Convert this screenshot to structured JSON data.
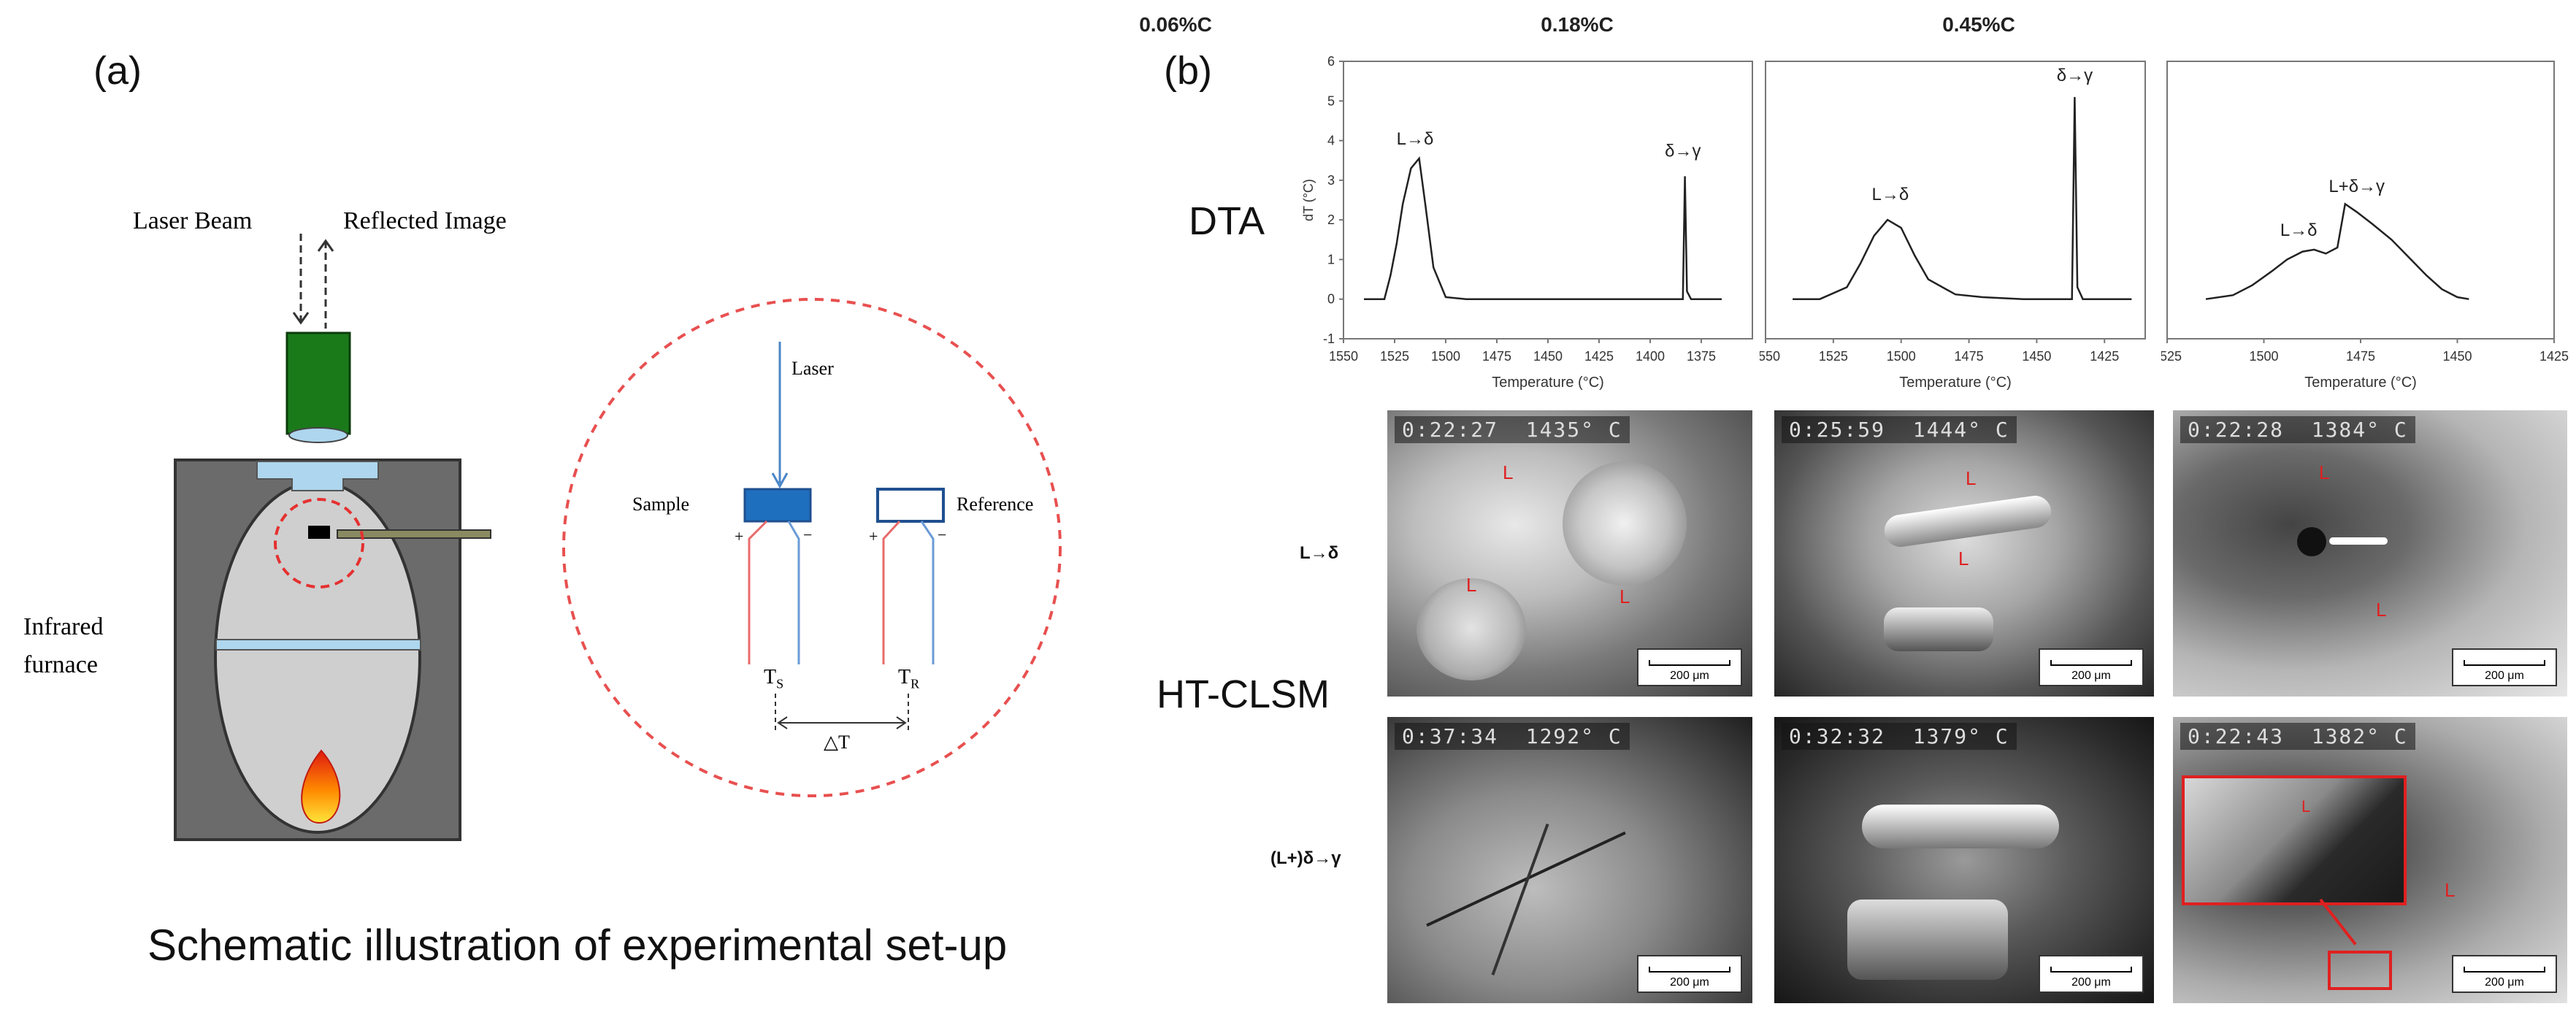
{
  "panel_a": {
    "label": "(a)",
    "laser_beam": "Laser Beam",
    "reflected_image": "Reflected Image",
    "infrared_furnace_line1": "Infrared",
    "infrared_furnace_line2": "furnace",
    "inset": {
      "laser": "Laser",
      "sample": "Sample",
      "reference": "Reference",
      "ts": "T",
      "ts_sub": "S",
      "tr": "T",
      "tr_sub": "R",
      "delta_t": "△T",
      "plus": "+",
      "minus": "−"
    },
    "caption": "Schematic illustration of experimental set-up"
  },
  "panel_b": {
    "label": "(b)",
    "dta_label": "DTA",
    "htclsm_label": "HT-CLSM",
    "row1_label": "L→δ",
    "row2_label": "(L+)δ→γ",
    "columns": [
      "0.06%C",
      "0.18%C",
      "0.45%C"
    ],
    "ylabel": "dT (°C)",
    "xlabel": "Temperature (°C)",
    "microscope": [
      {
        "osd": "0:22:27  1435° C",
        "scale": "200 μm",
        "phases": [
          "L",
          "L",
          "L"
        ]
      },
      {
        "osd": "0:25:59  1444° C",
        "scale": "200 μm",
        "phases": [
          "L",
          "L"
        ]
      },
      {
        "osd": "0:22:28  1384° C",
        "scale": "200 μm",
        "phases": [
          "L",
          "L"
        ]
      },
      {
        "osd": "0:37:34  1292° C",
        "scale": "200 μm",
        "phases": []
      },
      {
        "osd": "0:32:32  1379° C",
        "scale": "200 μm",
        "phases": []
      },
      {
        "osd": "0:22:43  1382° C",
        "scale": "200 μm",
        "phases": [
          "L",
          "L"
        ]
      }
    ]
  },
  "chart_data": [
    {
      "type": "line",
      "title": "0.06%C",
      "xlabel": "Temperature (°C)",
      "ylabel": "dT (°C)",
      "xlim": [
        1550,
        1350
      ],
      "ylim": [
        -1,
        6
      ],
      "x_ticks": [
        1550,
        1525,
        1500,
        1475,
        1450,
        1425,
        1400,
        1375
      ],
      "y_ticks": [
        -1,
        0,
        1,
        2,
        3,
        4,
        5,
        6
      ],
      "x": [
        1540,
        1530,
        1527,
        1524,
        1521,
        1517,
        1513,
        1510,
        1506,
        1500,
        1490,
        1470,
        1440,
        1410,
        1390,
        1384,
        1383,
        1382,
        1380,
        1375,
        1365
      ],
      "y": [
        0,
        0,
        0.6,
        1.4,
        2.4,
        3.3,
        3.55,
        2.4,
        0.8,
        0.05,
        0,
        0,
        0,
        0,
        0,
        0,
        3.1,
        0.2,
        0,
        0,
        0
      ],
      "annotations": [
        {
          "text": "L→δ",
          "x": 1515,
          "y": 3.9
        },
        {
          "text": "δ→γ",
          "x": 1384,
          "y": 3.6
        }
      ]
    },
    {
      "type": "line",
      "title": "0.18%C",
      "xlabel": "Temperature (°C)",
      "ylabel": "",
      "xlim": [
        1550,
        1410
      ],
      "ylim": [
        -1,
        6
      ],
      "x_ticks": [
        1550,
        1525,
        1500,
        1475,
        1450,
        1425
      ],
      "y_ticks": [],
      "x": [
        1540,
        1530,
        1520,
        1515,
        1510,
        1505,
        1500,
        1495,
        1490,
        1480,
        1470,
        1455,
        1440,
        1437,
        1436,
        1435,
        1433,
        1425,
        1415
      ],
      "y": [
        0,
        0,
        0.3,
        0.9,
        1.6,
        2.0,
        1.8,
        1.1,
        0.5,
        0.12,
        0.05,
        0,
        0,
        0,
        5.1,
        0.3,
        0,
        0,
        0
      ],
      "annotations": [
        {
          "text": "L→δ",
          "x": 1504,
          "y": 2.5
        },
        {
          "text": "δ→γ",
          "x": 1436,
          "y": 5.5
        }
      ]
    },
    {
      "type": "line",
      "title": "0.45%C",
      "xlabel": "Temperature (°C)",
      "ylabel": "",
      "xlim": [
        1525,
        1425
      ],
      "ylim": [
        -1,
        6
      ],
      "x_ticks": [
        1525,
        1500,
        1475,
        1450,
        1425
      ],
      "y_ticks": [],
      "x": [
        1515,
        1508,
        1503,
        1498,
        1494,
        1490,
        1487,
        1484,
        1481,
        1479,
        1476,
        1472,
        1467,
        1462,
        1458,
        1454,
        1450,
        1447
      ],
      "y": [
        0,
        0.1,
        0.35,
        0.7,
        1.0,
        1.2,
        1.25,
        1.15,
        1.3,
        2.4,
        2.2,
        1.9,
        1.5,
        1.0,
        0.6,
        0.25,
        0.05,
        0
      ],
      "annotations": [
        {
          "text": "L→δ",
          "x": 1491,
          "y": 1.6
        },
        {
          "text": "L+δ→γ",
          "x": 1476,
          "y": 2.7
        }
      ]
    }
  ]
}
